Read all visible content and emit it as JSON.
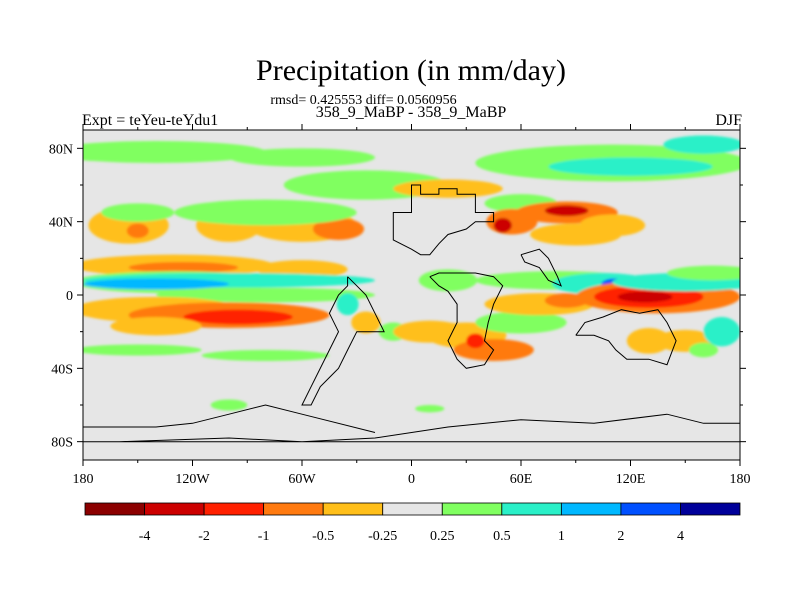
{
  "chart_data": {
    "type": "heatmap",
    "title": "Precipitation (in mm/day)",
    "stats_line": "rmsd= 0.425553 diff= 0.0560956",
    "subtitle": "358_9_MaBP - 358_9_MaBP",
    "left_label": "Expt = teYeu-teYdu1",
    "right_label": "DJF",
    "x_ticks": [
      {
        "value": -180,
        "label": "180"
      },
      {
        "value": -120,
        "label": "120W"
      },
      {
        "value": -60,
        "label": "60W"
      },
      {
        "value": 0,
        "label": "0"
      },
      {
        "value": 60,
        "label": "60E"
      },
      {
        "value": 120,
        "label": "120E"
      },
      {
        "value": 180,
        "label": "180"
      }
    ],
    "y_ticks": [
      {
        "value": 80,
        "label": "80N"
      },
      {
        "value": 40,
        "label": "40N"
      },
      {
        "value": 0,
        "label": "0"
      },
      {
        "value": -40,
        "label": "40S"
      },
      {
        "value": -80,
        "label": "80S"
      }
    ],
    "xlim": [
      -180,
      180
    ],
    "ylim": [
      -90,
      90
    ],
    "colorbar": {
      "colors": [
        "#8b0000",
        "#cc0000",
        "#ff2000",
        "#ff7a10",
        "#ffbf1a",
        "#e6e6e6",
        "#80ff60",
        "#2af0c8",
        "#00b8ff",
        "#0050ff",
        "#00009a"
      ],
      "labels": [
        "-4",
        "-2",
        "-1",
        "-0.5",
        "-0.25",
        "0.25",
        "0.5",
        "1",
        "2",
        "4"
      ]
    },
    "anomalies": [
      {
        "lon": -155,
        "lat": 38,
        "w": 22,
        "h": 10,
        "color": "#ffbf1a"
      },
      {
        "lon": -150,
        "lat": 35,
        "w": 6,
        "h": 4,
        "color": "#ff7a10"
      },
      {
        "lon": -100,
        "lat": 38,
        "w": 18,
        "h": 9,
        "color": "#ffbf1a"
      },
      {
        "lon": -60,
        "lat": 38,
        "w": 30,
        "h": 9,
        "color": "#ffbf1a"
      },
      {
        "lon": -40,
        "lat": 36,
        "w": 14,
        "h": 6,
        "color": "#ff7a10"
      },
      {
        "lon": -25,
        "lat": 60,
        "w": 45,
        "h": 8,
        "color": "#80ff60"
      },
      {
        "lon": -80,
        "lat": 45,
        "w": 50,
        "h": 7,
        "color": "#80ff60"
      },
      {
        "lon": -150,
        "lat": 45,
        "w": 20,
        "h": 5,
        "color": "#80ff60"
      },
      {
        "lon": -140,
        "lat": 78,
        "w": 60,
        "h": 6,
        "color": "#80ff60"
      },
      {
        "lon": -60,
        "lat": 75,
        "w": 40,
        "h": 5,
        "color": "#80ff60"
      },
      {
        "lon": 110,
        "lat": 72,
        "w": 75,
        "h": 10,
        "color": "#80ff60"
      },
      {
        "lon": 120,
        "lat": 70,
        "w": 45,
        "h": 5,
        "color": "#2af0c8"
      },
      {
        "lon": 160,
        "lat": 82,
        "w": 22,
        "h": 5,
        "color": "#2af0c8"
      },
      {
        "lon": 20,
        "lat": 58,
        "w": 30,
        "h": 5,
        "color": "#ffbf1a"
      },
      {
        "lon": 60,
        "lat": 50,
        "w": 20,
        "h": 5,
        "color": "#80ff60"
      },
      {
        "lon": 55,
        "lat": 40,
        "w": 14,
        "h": 7,
        "color": "#ff7a10"
      },
      {
        "lon": 50,
        "lat": 38,
        "w": 5,
        "h": 4,
        "color": "#cc0000"
      },
      {
        "lon": 85,
        "lat": 45,
        "w": 28,
        "h": 6,
        "color": "#ff7a10"
      },
      {
        "lon": 85,
        "lat": 46,
        "w": 12,
        "h": 3,
        "color": "#cc0000"
      },
      {
        "lon": 90,
        "lat": 33,
        "w": 25,
        "h": 6,
        "color": "#ffbf1a"
      },
      {
        "lon": 110,
        "lat": 38,
        "w": 18,
        "h": 6,
        "color": "#ffbf1a"
      },
      {
        "lon": -130,
        "lat": 16,
        "w": 55,
        "h": 6,
        "color": "#ffbf1a"
      },
      {
        "lon": -125,
        "lat": 15,
        "w": 30,
        "h": 3,
        "color": "#ff7a10"
      },
      {
        "lon": -60,
        "lat": 14,
        "w": 25,
        "h": 5,
        "color": "#ffbf1a"
      },
      {
        "lon": -130,
        "lat": 7,
        "w": 55,
        "h": 6,
        "color": "#80ff60"
      },
      {
        "lon": -100,
        "lat": 8,
        "w": 80,
        "h": 4,
        "color": "#2af0c8"
      },
      {
        "lon": -140,
        "lat": 6,
        "w": 40,
        "h": 3,
        "color": "#00b8ff"
      },
      {
        "lon": -80,
        "lat": 0,
        "w": 60,
        "h": 4,
        "color": "#80ff60"
      },
      {
        "lon": -140,
        "lat": -8,
        "w": 45,
        "h": 7,
        "color": "#ffbf1a"
      },
      {
        "lon": -100,
        "lat": -11,
        "w": 55,
        "h": 7,
        "color": "#ff7a10"
      },
      {
        "lon": -95,
        "lat": -12,
        "w": 30,
        "h": 4,
        "color": "#ff2000"
      },
      {
        "lon": -140,
        "lat": -17,
        "w": 25,
        "h": 5,
        "color": "#ffbf1a"
      },
      {
        "lon": -35,
        "lat": -5,
        "w": 6,
        "h": 6,
        "color": "#2af0c8"
      },
      {
        "lon": -25,
        "lat": -15,
        "w": 8,
        "h": 6,
        "color": "#ffbf1a"
      },
      {
        "lon": -10,
        "lat": -20,
        "w": 8,
        "h": 5,
        "color": "#80ff60"
      },
      {
        "lon": 20,
        "lat": 8,
        "w": 16,
        "h": 6,
        "color": "#80ff60"
      },
      {
        "lon": 10,
        "lat": -20,
        "w": 20,
        "h": 6,
        "color": "#ffbf1a"
      },
      {
        "lon": 30,
        "lat": -22,
        "w": 22,
        "h": 7,
        "color": "#ffbf1a"
      },
      {
        "lon": 45,
        "lat": -30,
        "w": 22,
        "h": 6,
        "color": "#ff7a10"
      },
      {
        "lon": 35,
        "lat": -25,
        "w": 5,
        "h": 4,
        "color": "#ff2000"
      },
      {
        "lon": 60,
        "lat": -15,
        "w": 25,
        "h": 6,
        "color": "#80ff60"
      },
      {
        "lon": 80,
        "lat": 8,
        "w": 45,
        "h": 5,
        "color": "#80ff60"
      },
      {
        "lon": 105,
        "lat": 6,
        "w": 28,
        "h": 6,
        "color": "#2af0c8"
      },
      {
        "lon": 112,
        "lat": 6,
        "w": 8,
        "h": 3,
        "color": "#0050ff"
      },
      {
        "lon": 70,
        "lat": -5,
        "w": 30,
        "h": 6,
        "color": "#ffbf1a"
      },
      {
        "lon": 85,
        "lat": -3,
        "w": 12,
        "h": 4,
        "color": "#ff7a10"
      },
      {
        "lon": 135,
        "lat": -1,
        "w": 45,
        "h": 9,
        "color": "#ff7a10"
      },
      {
        "lon": 130,
        "lat": -1,
        "w": 30,
        "h": 6,
        "color": "#ff2000"
      },
      {
        "lon": 128,
        "lat": -1,
        "w": 15,
        "h": 3,
        "color": "#cc0000"
      },
      {
        "lon": 150,
        "lat": 7,
        "w": 40,
        "h": 5,
        "color": "#2af0c8"
      },
      {
        "lon": 165,
        "lat": 12,
        "w": 25,
        "h": 4,
        "color": "#80ff60"
      },
      {
        "lon": 130,
        "lat": -25,
        "w": 12,
        "h": 7,
        "color": "#ffbf1a"
      },
      {
        "lon": 150,
        "lat": -25,
        "w": 16,
        "h": 6,
        "color": "#ffbf1a"
      },
      {
        "lon": 170,
        "lat": -20,
        "w": 10,
        "h": 8,
        "color": "#2af0c8"
      },
      {
        "lon": 160,
        "lat": -30,
        "w": 8,
        "h": 4,
        "color": "#80ff60"
      },
      {
        "lon": -150,
        "lat": -30,
        "w": 35,
        "h": 3,
        "color": "#80ff60"
      },
      {
        "lon": -80,
        "lat": -33,
        "w": 35,
        "h": 3,
        "color": "#80ff60"
      },
      {
        "lon": -100,
        "lat": -60,
        "w": 10,
        "h": 3,
        "color": "#80ff60"
      },
      {
        "lon": 10,
        "lat": -62,
        "w": 8,
        "h": 2,
        "color": "#80ff60"
      }
    ],
    "land_outline": [
      [
        [
          0,
          52
        ],
        [
          0,
          60
        ],
        [
          5,
          60
        ],
        [
          5,
          55
        ],
        [
          15,
          55
        ],
        [
          15,
          58
        ],
        [
          25,
          58
        ],
        [
          25,
          55
        ],
        [
          35,
          55
        ],
        [
          35,
          45
        ],
        [
          45,
          45
        ],
        [
          45,
          40
        ],
        [
          35,
          40
        ],
        [
          30,
          36
        ],
        [
          20,
          33
        ],
        [
          15,
          28
        ],
        [
          10,
          22
        ],
        [
          5,
          22
        ],
        [
          0,
          25
        ],
        [
          -10,
          30
        ],
        [
          -10,
          45
        ],
        [
          0,
          45
        ],
        [
          0,
          52
        ]
      ],
      [
        [
          -35,
          10
        ],
        [
          -30,
          5
        ],
        [
          -25,
          0
        ],
        [
          -20,
          -10
        ],
        [
          -15,
          -20
        ],
        [
          -30,
          -20
        ],
        [
          -35,
          -30
        ],
        [
          -40,
          -40
        ],
        [
          -45,
          -45
        ],
        [
          -50,
          -50
        ],
        [
          -55,
          -60
        ],
        [
          -60,
          -60
        ],
        [
          -55,
          -50
        ],
        [
          -45,
          -30
        ],
        [
          -40,
          -20
        ],
        [
          -45,
          -10
        ],
        [
          -40,
          0
        ],
        [
          -35,
          5
        ],
        [
          -35,
          10
        ]
      ],
      [
        [
          10,
          10
        ],
        [
          15,
          5
        ],
        [
          20,
          2
        ],
        [
          25,
          -5
        ],
        [
          25,
          -15
        ],
        [
          20,
          -25
        ],
        [
          25,
          -35
        ],
        [
          30,
          -40
        ],
        [
          40,
          -38
        ],
        [
          45,
          -30
        ],
        [
          40,
          -25
        ],
        [
          42,
          -15
        ],
        [
          45,
          -5
        ],
        [
          50,
          5
        ],
        [
          45,
          10
        ],
        [
          35,
          12
        ],
        [
          25,
          12
        ],
        [
          15,
          12
        ],
        [
          10,
          10
        ]
      ],
      [
        [
          -20,
          -75
        ],
        [
          -60,
          -65
        ],
        [
          -80,
          -60
        ],
        [
          -100,
          -65
        ],
        [
          -120,
          -70
        ],
        [
          -140,
          -72
        ],
        [
          -180,
          -72
        ],
        [
          -180,
          -80
        ],
        [
          -160,
          -80
        ],
        [
          -100,
          -78
        ],
        [
          -60,
          -80
        ],
        [
          -20,
          -78
        ],
        [
          20,
          -72
        ],
        [
          60,
          -68
        ],
        [
          100,
          -70
        ],
        [
          140,
          -65
        ],
        [
          160,
          -70
        ],
        [
          180,
          -70
        ],
        [
          180,
          -80
        ],
        [
          -180,
          -80
        ]
      ],
      [
        [
          90,
          -22
        ],
        [
          95,
          -15
        ],
        [
          105,
          -12
        ],
        [
          115,
          -8
        ],
        [
          125,
          -10
        ],
        [
          135,
          -8
        ],
        [
          140,
          -15
        ],
        [
          145,
          -25
        ],
        [
          140,
          -38
        ],
        [
          130,
          -35
        ],
        [
          118,
          -35
        ],
        [
          112,
          -30
        ],
        [
          108,
          -25
        ],
        [
          100,
          -22
        ],
        [
          90,
          -22
        ]
      ],
      [
        [
          60,
          22
        ],
        [
          70,
          25
        ],
        [
          75,
          20
        ],
        [
          80,
          10
        ],
        [
          82,
          5
        ],
        [
          75,
          8
        ],
        [
          70,
          15
        ],
        [
          62,
          18
        ],
        [
          60,
          22
        ]
      ]
    ]
  }
}
